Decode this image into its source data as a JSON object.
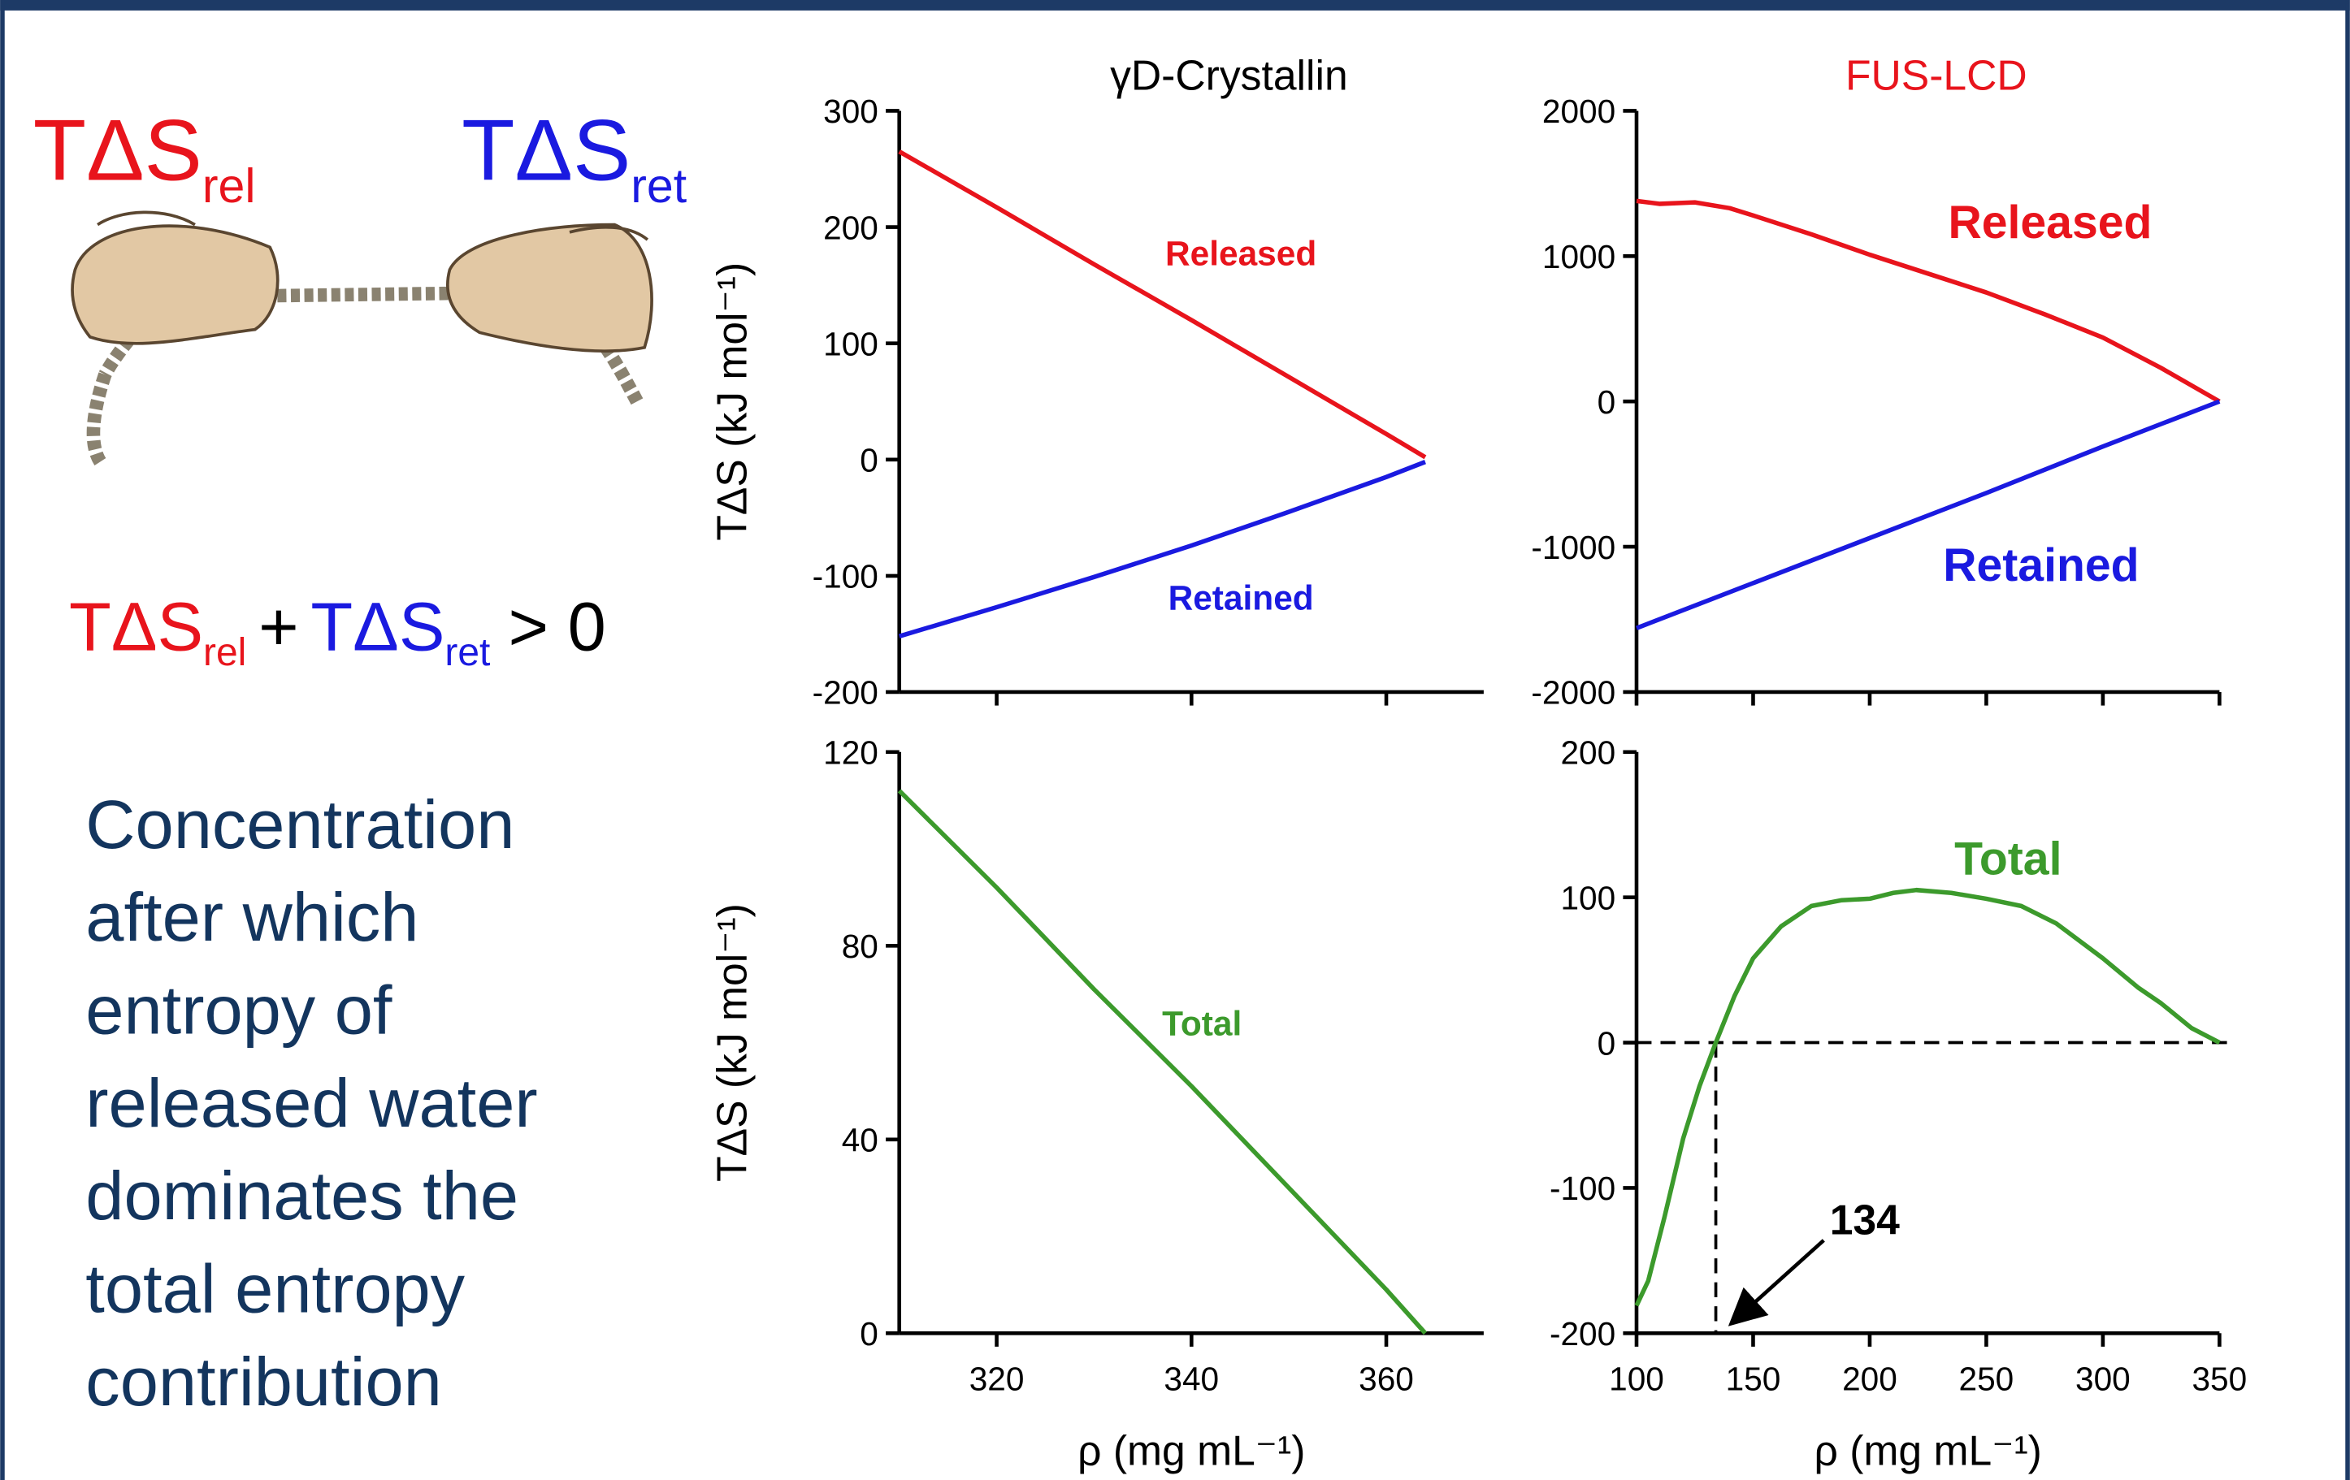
{
  "slide": {
    "rel_term": {
      "main": "TΔS",
      "sub": "rel"
    },
    "ret_term": {
      "main": "TΔS",
      "sub": "ret"
    },
    "equation": {
      "rel_main": "TΔS",
      "rel_sub": "rel",
      "plus": "+",
      "ret_main": "TΔS",
      "ret_sub": "ret",
      "relation": "> 0"
    },
    "description": [
      "Concentration",
      "after which",
      "entropy of",
      "released water",
      "dominates the",
      "total entropy",
      "contribution"
    ]
  },
  "chart_data": [
    {
      "type": "line",
      "title": "γD-Crystallin",
      "title_color": "#000000",
      "ylabel": "TΔS (kJ mol⁻¹)",
      "xlim": [
        310,
        370
      ],
      "xticks": [
        320,
        340,
        360
      ],
      "xtick_labels": false,
      "ylim": [
        -200,
        300
      ],
      "yticks": [
        300,
        200,
        100,
        0,
        -100,
        -200
      ],
      "series": [
        {
          "name": "Released",
          "color": "#e8141c",
          "x": [
            310,
            320,
            330,
            340,
            350,
            360,
            364
          ],
          "y": [
            265,
            217,
            168,
            120,
            71,
            22,
            2
          ]
        },
        {
          "name": "Retained",
          "color": "#1a1ae0",
          "x": [
            310,
            320,
            330,
            340,
            350,
            360,
            364
          ],
          "y": [
            -152,
            -127,
            -101,
            -74,
            -45,
            -15,
            -2
          ]
        }
      ]
    },
    {
      "type": "line",
      "title": "FUS-LCD",
      "title_color": "#e8141c",
      "xlim": [
        100,
        350
      ],
      "xticks": [
        100,
        150,
        200,
        250,
        300,
        350
      ],
      "xtick_labels": false,
      "ylim": [
        -2000,
        2000
      ],
      "yticks": [
        2000,
        1000,
        0,
        -1000,
        -2000
      ],
      "series": [
        {
          "name": "Released",
          "color": "#e8141c",
          "x": [
            100,
            110,
            125,
            140,
            150,
            175,
            200,
            225,
            250,
            275,
            300,
            325,
            350
          ],
          "y": [
            1380,
            1360,
            1370,
            1330,
            1280,
            1150,
            1010,
            880,
            750,
            600,
            440,
            230,
            0
          ]
        },
        {
          "name": "Retained",
          "color": "#1a1ae0",
          "x": [
            100,
            150,
            200,
            250,
            300,
            350
          ],
          "y": [
            -1560,
            -1250,
            -940,
            -630,
            -310,
            0
          ]
        }
      ]
    },
    {
      "type": "line",
      "ylabel": "TΔS (kJ mol⁻¹)",
      "xlabel": "ρ (mg mL⁻¹)",
      "xlim": [
        310,
        370
      ],
      "xticks": [
        320,
        340,
        360
      ],
      "ylim": [
        0,
        120
      ],
      "yticks": [
        120,
        80,
        40,
        0
      ],
      "series": [
        {
          "name": "Total",
          "color": "#3c9a2c",
          "x": [
            310,
            320,
            330,
            340,
            350,
            360,
            364
          ],
          "y": [
            112,
            92,
            71,
            51,
            30,
            9,
            0
          ]
        }
      ]
    },
    {
      "type": "line",
      "xlabel": "ρ (mg mL⁻¹)",
      "xlim": [
        100,
        350
      ],
      "xticks": [
        100,
        150,
        200,
        250,
        300,
        350
      ],
      "ylim": [
        -200,
        200
      ],
      "yticks": [
        200,
        100,
        0,
        -100,
        -200
      ],
      "hline": 0,
      "threshold": 134,
      "series": [
        {
          "name": "Total",
          "color": "#3c9a2c",
          "x": [
            100,
            105,
            112,
            120,
            127,
            134,
            142,
            150,
            162,
            175,
            188,
            200,
            210,
            220,
            235,
            250,
            265,
            280,
            300,
            315,
            325,
            338,
            350
          ],
          "y": [
            -181,
            -164,
            -120,
            -66,
            -30,
            0,
            32,
            58,
            80,
            94,
            98,
            99,
            103,
            105,
            103,
            99,
            94,
            82,
            58,
            38,
            27,
            10,
            0
          ]
        }
      ]
    }
  ]
}
